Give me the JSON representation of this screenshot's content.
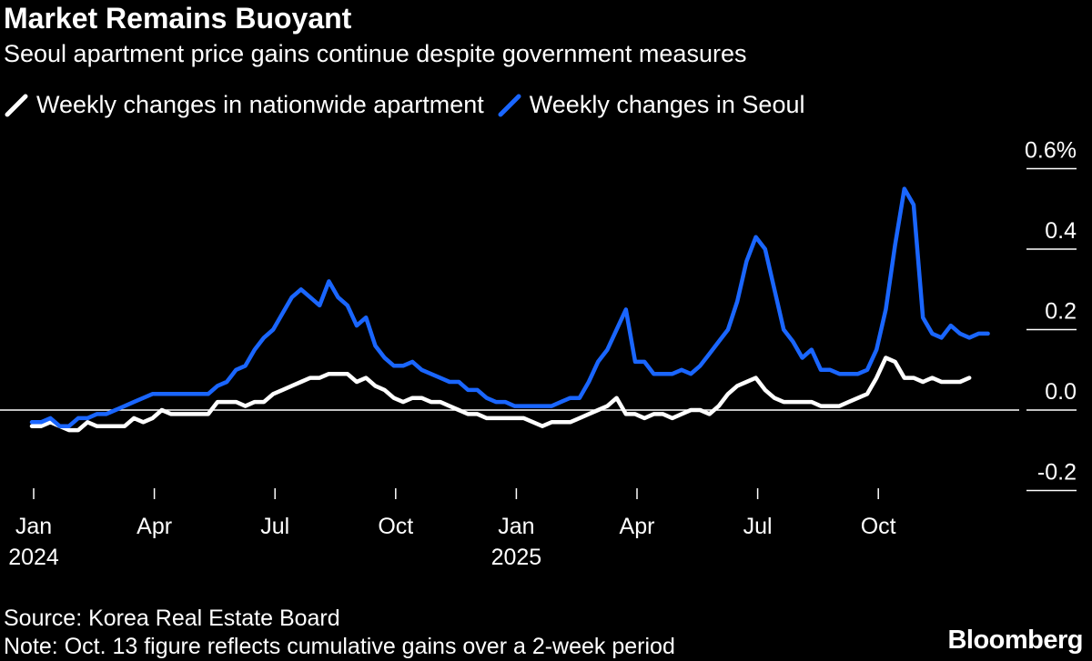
{
  "title": "Market Remains Buoyant",
  "subtitle": "Seoul apartment price gains continue despite government measures",
  "source": "Source: Korea Real Estate Board",
  "note": "Note: Oct. 13 figure reflects cumulative gains over a 2-week period",
  "brand": "Bloomberg",
  "colors": {
    "background": "#000000",
    "nationwide": "#ffffff",
    "seoul": "#1a66ff"
  },
  "chart_data": {
    "type": "line",
    "title": "Market Remains Buoyant",
    "subtitle": "Seoul apartment price gains continue despite government measures",
    "xlabel": "",
    "ylabel": "",
    "ylim": [
      -0.2,
      0.6
    ],
    "y_ticks": [
      {
        "value": 0.6,
        "label": "0.6%"
      },
      {
        "value": 0.4,
        "label": "0.4"
      },
      {
        "value": 0.2,
        "label": "0.2"
      },
      {
        "value": 0.0,
        "label": "0.0"
      },
      {
        "value": -0.2,
        "label": "-0.2"
      }
    ],
    "x_ticks": [
      {
        "week": 0,
        "label": "Jan",
        "year": "2024"
      },
      {
        "week": 13,
        "label": "Apr",
        "year": ""
      },
      {
        "week": 26,
        "label": "Jul",
        "year": ""
      },
      {
        "week": 39,
        "label": "Oct",
        "year": ""
      },
      {
        "week": 52,
        "label": "Jan",
        "year": "2025"
      },
      {
        "week": 65,
        "label": "Apr",
        "year": ""
      },
      {
        "week": 78,
        "label": "Jul",
        "year": ""
      },
      {
        "week": 91,
        "label": "Oct",
        "year": ""
      }
    ],
    "legend_position": "top-left",
    "series": [
      {
        "name": "Weekly changes in nationwide apartment",
        "color": "#ffffff",
        "start_week": -0.2,
        "values": [
          -0.04,
          -0.04,
          -0.03,
          -0.04,
          -0.05,
          -0.05,
          -0.03,
          -0.04,
          -0.04,
          -0.04,
          -0.04,
          -0.02,
          -0.03,
          -0.02,
          0.0,
          -0.01,
          -0.01,
          -0.01,
          -0.01,
          -0.01,
          0.02,
          0.02,
          0.02,
          0.01,
          0.02,
          0.02,
          0.04,
          0.05,
          0.06,
          0.07,
          0.08,
          0.08,
          0.09,
          0.09,
          0.09,
          0.07,
          0.08,
          0.06,
          0.05,
          0.03,
          0.02,
          0.03,
          0.03,
          0.02,
          0.02,
          0.01,
          0.0,
          -0.01,
          -0.01,
          -0.02,
          -0.02,
          -0.02,
          -0.02,
          -0.02,
          -0.03,
          -0.04,
          -0.03,
          -0.03,
          -0.03,
          -0.02,
          -0.01,
          0.0,
          0.01,
          0.03,
          -0.01,
          -0.01,
          -0.02,
          -0.01,
          -0.01,
          -0.02,
          -0.01,
          0.0,
          0.0,
          -0.01,
          0.01,
          0.04,
          0.06,
          0.07,
          0.08,
          0.05,
          0.03,
          0.02,
          0.02,
          0.02,
          0.02,
          0.01,
          0.01,
          0.01,
          0.02,
          0.03,
          0.04,
          0.08,
          0.13,
          0.12,
          0.08,
          0.08,
          0.07,
          0.08,
          0.07,
          0.07,
          0.07,
          0.08
        ]
      },
      {
        "name": "Weekly changes in Seoul",
        "color": "#1a66ff",
        "start_week": -0.2,
        "values": [
          -0.03,
          -0.03,
          -0.02,
          -0.04,
          -0.04,
          -0.02,
          -0.02,
          -0.01,
          -0.01,
          0.0,
          0.01,
          0.02,
          0.03,
          0.04,
          0.04,
          0.04,
          0.04,
          0.04,
          0.04,
          0.04,
          0.06,
          0.07,
          0.1,
          0.11,
          0.15,
          0.18,
          0.2,
          0.24,
          0.28,
          0.3,
          0.28,
          0.26,
          0.32,
          0.28,
          0.26,
          0.21,
          0.23,
          0.16,
          0.13,
          0.11,
          0.11,
          0.12,
          0.1,
          0.09,
          0.08,
          0.07,
          0.07,
          0.05,
          0.05,
          0.03,
          0.02,
          0.02,
          0.01,
          0.01,
          0.01,
          0.01,
          0.01,
          0.02,
          0.03,
          0.03,
          0.07,
          0.12,
          0.15,
          0.2,
          0.25,
          0.12,
          0.12,
          0.09,
          0.09,
          0.09,
          0.1,
          0.09,
          0.11,
          0.14,
          0.17,
          0.2,
          0.27,
          0.37,
          0.43,
          0.4,
          0.3,
          0.2,
          0.17,
          0.13,
          0.15,
          0.1,
          0.1,
          0.09,
          0.09,
          0.09,
          0.1,
          0.15,
          0.25,
          0.41,
          0.55,
          0.51,
          0.23,
          0.19,
          0.18,
          0.21,
          0.19,
          0.18,
          0.19,
          0.19
        ]
      }
    ]
  }
}
